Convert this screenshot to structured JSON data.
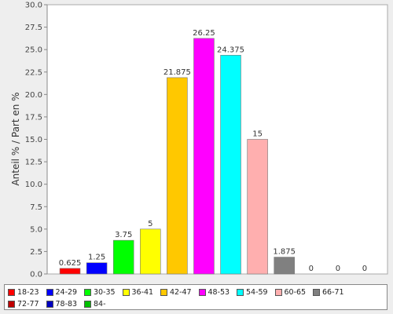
{
  "chart_data": {
    "type": "bar",
    "ylabel": "Anteil % / Part en %",
    "xlabel": "",
    "ylim": [
      0,
      30
    ],
    "yticks": [
      "0.0",
      "2.5",
      "5.0",
      "7.5",
      "10.0",
      "12.5",
      "15.0",
      "17.5",
      "20.0",
      "22.5",
      "25.0",
      "27.5",
      "30.0"
    ],
    "grid": "off",
    "legend_position": "bottom",
    "series": [
      {
        "name": "18-23",
        "color": "#ff0000",
        "value": 0.625,
        "label": "0.625"
      },
      {
        "name": "24-29",
        "color": "#0000ff",
        "value": 1.25,
        "label": "1.25"
      },
      {
        "name": "30-35",
        "color": "#00ff00",
        "value": 3.75,
        "label": "3.75"
      },
      {
        "name": "36-41",
        "color": "#ffff00",
        "value": 5,
        "label": "5"
      },
      {
        "name": "42-47",
        "color": "#ffc800",
        "value": 21.875,
        "label": "21.875"
      },
      {
        "name": "48-53",
        "color": "#ff00ff",
        "value": 26.25,
        "label": "26.25"
      },
      {
        "name": "54-59",
        "color": "#00ffff",
        "value": 24.375,
        "label": "24.375"
      },
      {
        "name": "60-65",
        "color": "#ffafaf",
        "value": 15,
        "label": "15"
      },
      {
        "name": "66-71",
        "color": "#808080",
        "value": 1.875,
        "label": "1.875"
      },
      {
        "name": "72-77",
        "color": "#c00000",
        "value": 0,
        "label": "0"
      },
      {
        "name": "78-83",
        "color": "#0000c0",
        "value": 0,
        "label": "0"
      },
      {
        "name": "84-",
        "color": "#00c000",
        "value": 0,
        "label": "0"
      }
    ]
  }
}
